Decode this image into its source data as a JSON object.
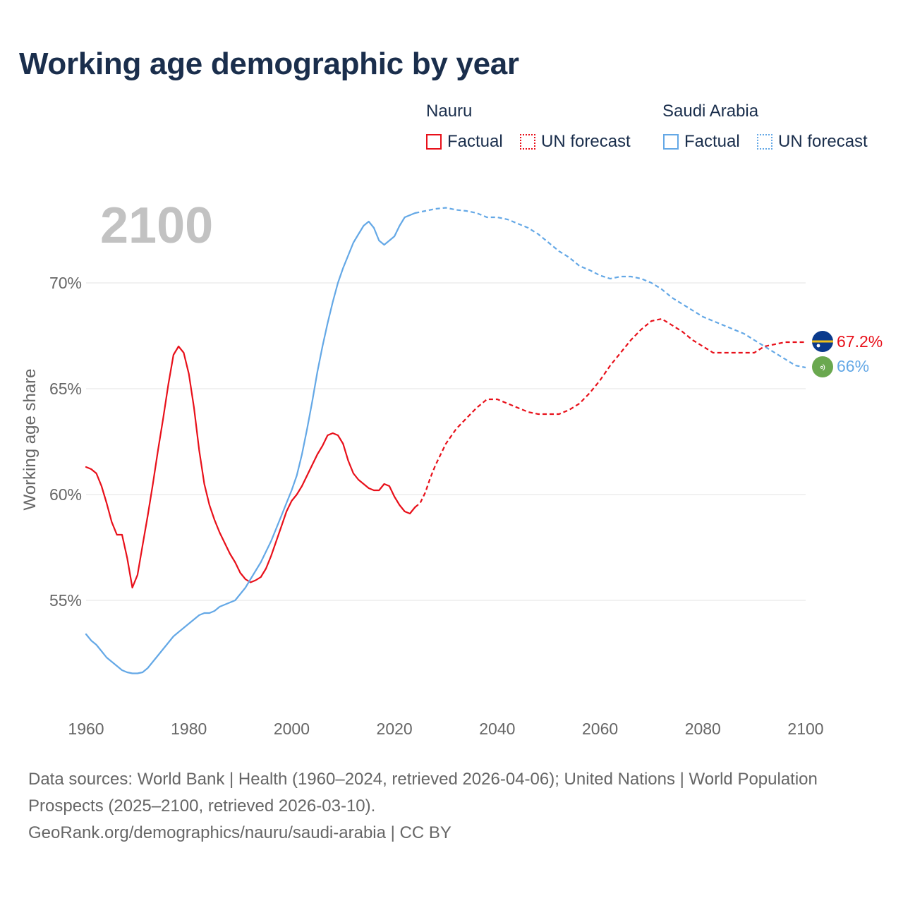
{
  "title": "Working age demographic by year",
  "legend": {
    "groups": [
      {
        "country": "Nauru",
        "factual_label": "Factual",
        "forecast_label": "UN forecast",
        "color": "#e8101a"
      },
      {
        "country": "Saudi Arabia",
        "factual_label": "Factual",
        "forecast_label": "UN forecast",
        "color": "#64a8e6"
      }
    ]
  },
  "year_overlay": "2100",
  "end_labels": {
    "nauru": "67.2%",
    "saudi_arabia": "66%"
  },
  "source": {
    "note": "Data sources: World Bank | Health (1960–2024, retrieved 2026-04-06); United Nations | World Population Prospects (2025–2100, retrieved 2026-03-10).",
    "url": "GeoRank.org/demographics/nauru/saudi-arabia | CC BY"
  },
  "chart_data": {
    "type": "line",
    "title": "Working age demographic by year",
    "xlabel": "",
    "ylabel": "Working age share",
    "xlim": [
      1960,
      2100
    ],
    "ylim": [
      51,
      75
    ],
    "grid": true,
    "x_ticks": [
      1960,
      1980,
      2000,
      2020,
      2040,
      2060,
      2080,
      2100
    ],
    "y_ticks": [
      {
        "value": 55,
        "label": "55%"
      },
      {
        "value": 60,
        "label": "60%"
      },
      {
        "value": 65,
        "label": "65%"
      },
      {
        "value": 70,
        "label": "70%"
      }
    ],
    "factual_until": 2024,
    "series": [
      {
        "name": "Nauru",
        "color": "#e8101a",
        "points": [
          [
            1960,
            61.3
          ],
          [
            1961,
            61.2
          ],
          [
            1962,
            61.0
          ],
          [
            1963,
            60.4
          ],
          [
            1964,
            59.6
          ],
          [
            1965,
            58.7
          ],
          [
            1966,
            58.1
          ],
          [
            1967,
            58.1
          ],
          [
            1968,
            57.0
          ],
          [
            1969,
            55.6
          ],
          [
            1970,
            56.2
          ],
          [
            1971,
            57.6
          ],
          [
            1972,
            59.0
          ],
          [
            1973,
            60.5
          ],
          [
            1974,
            62.1
          ],
          [
            1975,
            63.6
          ],
          [
            1976,
            65.2
          ],
          [
            1977,
            66.6
          ],
          [
            1978,
            67.0
          ],
          [
            1979,
            66.7
          ],
          [
            1980,
            65.7
          ],
          [
            1981,
            64.1
          ],
          [
            1982,
            62.1
          ],
          [
            1983,
            60.5
          ],
          [
            1984,
            59.5
          ],
          [
            1985,
            58.8
          ],
          [
            1986,
            58.2
          ],
          [
            1987,
            57.7
          ],
          [
            1988,
            57.2
          ],
          [
            1989,
            56.8
          ],
          [
            1990,
            56.3
          ],
          [
            1991,
            56.0
          ],
          [
            1992,
            55.85
          ],
          [
            1993,
            55.95
          ],
          [
            1994,
            56.1
          ],
          [
            1995,
            56.5
          ],
          [
            1996,
            57.1
          ],
          [
            1997,
            57.8
          ],
          [
            1998,
            58.5
          ],
          [
            1999,
            59.2
          ],
          [
            2000,
            59.7
          ],
          [
            2001,
            60.0
          ],
          [
            2002,
            60.4
          ],
          [
            2003,
            60.9
          ],
          [
            2004,
            61.4
          ],
          [
            2005,
            61.9
          ],
          [
            2006,
            62.3
          ],
          [
            2007,
            62.8
          ],
          [
            2008,
            62.9
          ],
          [
            2009,
            62.8
          ],
          [
            2010,
            62.4
          ],
          [
            2011,
            61.6
          ],
          [
            2012,
            61.0
          ],
          [
            2013,
            60.7
          ],
          [
            2014,
            60.5
          ],
          [
            2015,
            60.3
          ],
          [
            2016,
            60.2
          ],
          [
            2017,
            60.2
          ],
          [
            2018,
            60.5
          ],
          [
            2019,
            60.4
          ],
          [
            2020,
            59.9
          ],
          [
            2021,
            59.5
          ],
          [
            2022,
            59.2
          ],
          [
            2023,
            59.1
          ],
          [
            2024,
            59.4
          ],
          [
            2025,
            59.6
          ],
          [
            2026,
            60.1
          ],
          [
            2027,
            60.8
          ],
          [
            2028,
            61.4
          ],
          [
            2029,
            61.9
          ],
          [
            2030,
            62.4
          ],
          [
            2032,
            63.1
          ],
          [
            2034,
            63.6
          ],
          [
            2036,
            64.1
          ],
          [
            2038,
            64.5
          ],
          [
            2040,
            64.5
          ],
          [
            2042,
            64.3
          ],
          [
            2044,
            64.1
          ],
          [
            2046,
            63.9
          ],
          [
            2048,
            63.8
          ],
          [
            2050,
            63.8
          ],
          [
            2052,
            63.8
          ],
          [
            2054,
            64.0
          ],
          [
            2056,
            64.3
          ],
          [
            2058,
            64.8
          ],
          [
            2060,
            65.4
          ],
          [
            2062,
            66.1
          ],
          [
            2064,
            66.7
          ],
          [
            2066,
            67.3
          ],
          [
            2068,
            67.8
          ],
          [
            2070,
            68.2
          ],
          [
            2072,
            68.3
          ],
          [
            2074,
            68.0
          ],
          [
            2076,
            67.7
          ],
          [
            2078,
            67.3
          ],
          [
            2080,
            67.0
          ],
          [
            2082,
            66.7
          ],
          [
            2084,
            66.7
          ],
          [
            2086,
            66.7
          ],
          [
            2088,
            66.7
          ],
          [
            2090,
            66.7
          ],
          [
            2092,
            67.0
          ],
          [
            2094,
            67.1
          ],
          [
            2096,
            67.2
          ],
          [
            2098,
            67.2
          ],
          [
            2100,
            67.2
          ]
        ]
      },
      {
        "name": "Saudi Arabia",
        "color": "#64a8e6",
        "points": [
          [
            1960,
            53.4
          ],
          [
            1961,
            53.1
          ],
          [
            1962,
            52.9
          ],
          [
            1963,
            52.6
          ],
          [
            1964,
            52.3
          ],
          [
            1965,
            52.1
          ],
          [
            1966,
            51.9
          ],
          [
            1967,
            51.7
          ],
          [
            1968,
            51.6
          ],
          [
            1969,
            51.55
          ],
          [
            1970,
            51.55
          ],
          [
            1971,
            51.6
          ],
          [
            1972,
            51.8
          ],
          [
            1973,
            52.1
          ],
          [
            1974,
            52.4
          ],
          [
            1975,
            52.7
          ],
          [
            1976,
            53.0
          ],
          [
            1977,
            53.3
          ],
          [
            1978,
            53.5
          ],
          [
            1979,
            53.7
          ],
          [
            1980,
            53.9
          ],
          [
            1981,
            54.1
          ],
          [
            1982,
            54.3
          ],
          [
            1983,
            54.4
          ],
          [
            1984,
            54.4
          ],
          [
            1985,
            54.5
          ],
          [
            1986,
            54.7
          ],
          [
            1987,
            54.8
          ],
          [
            1988,
            54.9
          ],
          [
            1989,
            55.0
          ],
          [
            1990,
            55.3
          ],
          [
            1991,
            55.6
          ],
          [
            1992,
            56.0
          ],
          [
            1993,
            56.4
          ],
          [
            1994,
            56.8
          ],
          [
            1995,
            57.3
          ],
          [
            1996,
            57.8
          ],
          [
            1997,
            58.4
          ],
          [
            1998,
            59.0
          ],
          [
            1999,
            59.6
          ],
          [
            2000,
            60.2
          ],
          [
            2001,
            60.9
          ],
          [
            2002,
            61.9
          ],
          [
            2003,
            63.1
          ],
          [
            2004,
            64.4
          ],
          [
            2005,
            65.8
          ],
          [
            2006,
            67.0
          ],
          [
            2007,
            68.1
          ],
          [
            2008,
            69.1
          ],
          [
            2009,
            70.0
          ],
          [
            2010,
            70.7
          ],
          [
            2011,
            71.3
          ],
          [
            2012,
            71.9
          ],
          [
            2013,
            72.3
          ],
          [
            2014,
            72.7
          ],
          [
            2015,
            72.9
          ],
          [
            2016,
            72.6
          ],
          [
            2017,
            72.0
          ],
          [
            2018,
            71.8
          ],
          [
            2019,
            72.0
          ],
          [
            2020,
            72.2
          ],
          [
            2021,
            72.7
          ],
          [
            2022,
            73.1
          ],
          [
            2023,
            73.2
          ],
          [
            2024,
            73.3
          ],
          [
            2026,
            73.4
          ],
          [
            2028,
            73.5
          ],
          [
            2030,
            73.55
          ],
          [
            2032,
            73.45
          ],
          [
            2034,
            73.4
          ],
          [
            2036,
            73.3
          ],
          [
            2038,
            73.1
          ],
          [
            2040,
            73.1
          ],
          [
            2042,
            73.0
          ],
          [
            2044,
            72.8
          ],
          [
            2046,
            72.6
          ],
          [
            2048,
            72.3
          ],
          [
            2050,
            71.9
          ],
          [
            2052,
            71.5
          ],
          [
            2054,
            71.2
          ],
          [
            2056,
            70.8
          ],
          [
            2058,
            70.6
          ],
          [
            2060,
            70.35
          ],
          [
            2062,
            70.2
          ],
          [
            2064,
            70.3
          ],
          [
            2066,
            70.3
          ],
          [
            2068,
            70.2
          ],
          [
            2070,
            70.0
          ],
          [
            2072,
            69.7
          ],
          [
            2074,
            69.3
          ],
          [
            2076,
            69.0
          ],
          [
            2078,
            68.7
          ],
          [
            2080,
            68.4
          ],
          [
            2082,
            68.2
          ],
          [
            2084,
            68.0
          ],
          [
            2086,
            67.8
          ],
          [
            2088,
            67.6
          ],
          [
            2090,
            67.3
          ],
          [
            2092,
            67.0
          ],
          [
            2094,
            66.7
          ],
          [
            2096,
            66.4
          ],
          [
            2098,
            66.1
          ],
          [
            2100,
            66.0
          ]
        ]
      }
    ]
  }
}
